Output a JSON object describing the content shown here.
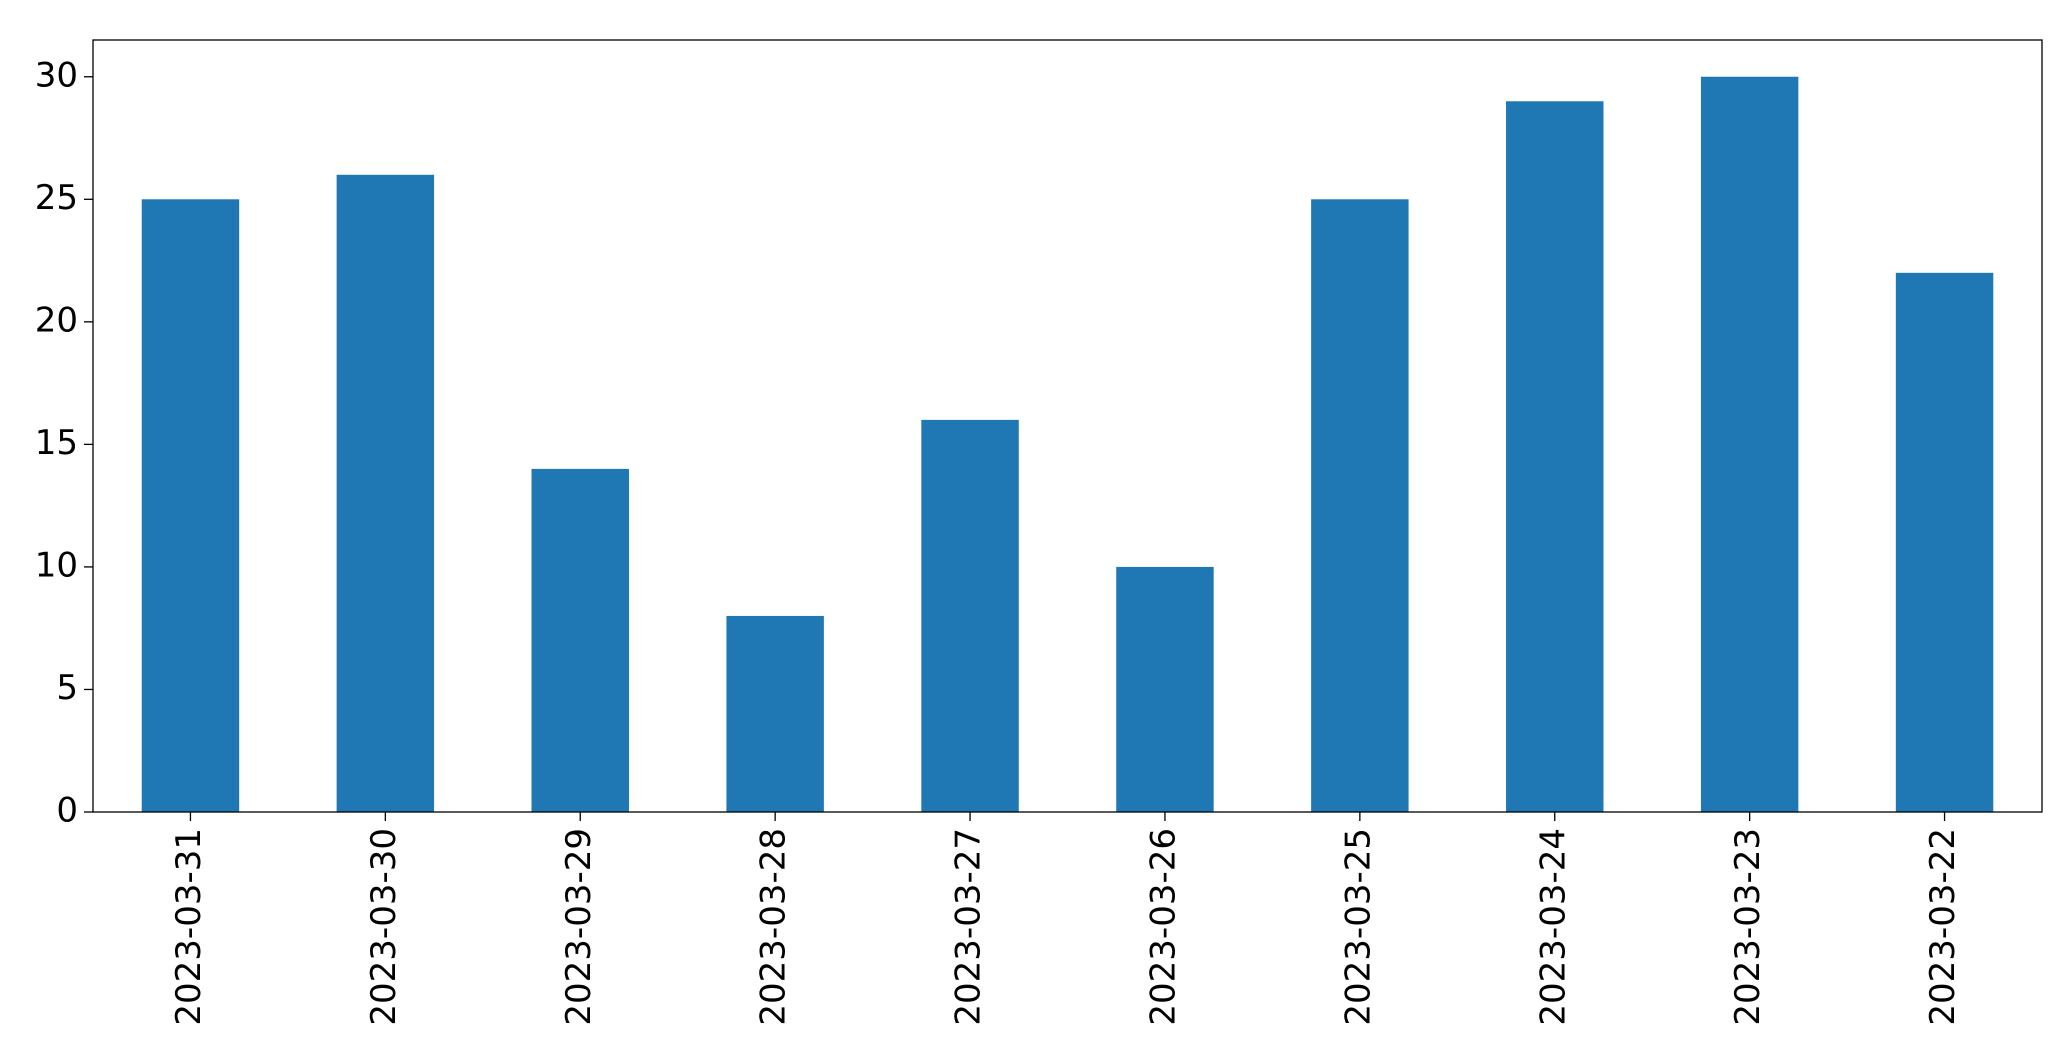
{
  "chart_data": {
    "type": "bar",
    "categories": [
      "2023-03-31",
      "2023-03-30",
      "2023-03-29",
      "2023-03-28",
      "2023-03-27",
      "2023-03-26",
      "2023-03-25",
      "2023-03-24",
      "2023-03-23",
      "2023-03-22"
    ],
    "values": [
      25,
      26,
      14,
      8,
      16,
      10,
      25,
      29,
      30,
      22
    ],
    "color": "#1f77b4",
    "ylim": [
      0,
      31.5
    ],
    "yticks": [
      0,
      5,
      10,
      15,
      20,
      25,
      30
    ],
    "grid": false
  }
}
